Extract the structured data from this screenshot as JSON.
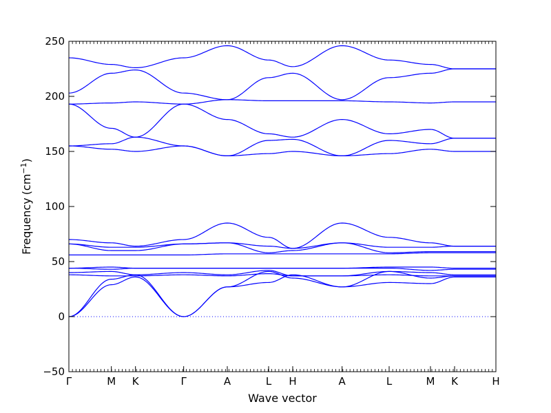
{
  "chart_data": {
    "type": "line",
    "title": "",
    "xlabel": "Wave vector",
    "ylabel": "Frequency",
    "ylabel_unit_base": "(cm",
    "ylabel_unit_exp": "−1",
    "ylabel_unit_close": ")",
    "ylim": [
      -50,
      250
    ],
    "yticks": [
      -50,
      0,
      50,
      100,
      150,
      200,
      250
    ],
    "xlim": [
      0,
      3.72
    ],
    "xtick_positions": [
      0,
      0.37,
      0.58,
      1.0,
      1.38,
      1.74,
      1.95,
      2.38,
      2.79,
      3.15,
      3.36,
      3.72
    ],
    "xtick_labels": [
      "Γ",
      "M",
      "K",
      "Γ",
      "A",
      "L",
      "H",
      "A",
      "L",
      "M",
      "K",
      "H"
    ],
    "grid": false,
    "zero_line": {
      "y": 0,
      "style": "dotted"
    },
    "line_color": "#0000ff",
    "series": [
      {
        "values": [
          [
            0,
            235
          ],
          [
            0.37,
            229
          ],
          [
            0.58,
            226
          ],
          [
            1.0,
            235
          ],
          [
            1.38,
            246
          ],
          [
            1.74,
            233
          ],
          [
            1.95,
            227
          ],
          [
            2.38,
            246
          ],
          [
            2.79,
            233
          ],
          [
            3.15,
            229
          ],
          [
            3.36,
            225
          ],
          [
            3.72,
            225
          ]
        ]
      },
      {
        "values": [
          [
            0,
            203
          ],
          [
            0.37,
            221
          ],
          [
            0.58,
            224
          ],
          [
            1.0,
            203
          ],
          [
            1.38,
            197
          ],
          [
            1.74,
            217
          ],
          [
            1.95,
            221
          ],
          [
            2.38,
            197
          ],
          [
            2.79,
            217
          ],
          [
            3.15,
            221
          ],
          [
            3.36,
            225
          ],
          [
            3.72,
            225
          ]
        ]
      },
      {
        "values": [
          [
            0,
            193
          ],
          [
            0.37,
            194
          ],
          [
            0.58,
            195
          ],
          [
            1.0,
            193
          ],
          [
            1.38,
            197
          ],
          [
            1.74,
            196
          ],
          [
            1.95,
            196
          ],
          [
            2.38,
            196
          ],
          [
            2.79,
            195
          ],
          [
            3.15,
            194
          ],
          [
            3.36,
            195
          ],
          [
            3.72,
            195
          ]
        ]
      },
      {
        "values": [
          [
            0,
            193
          ],
          [
            0.37,
            171
          ],
          [
            0.58,
            163
          ],
          [
            1.0,
            193
          ],
          [
            1.38,
            179
          ],
          [
            1.74,
            166
          ],
          [
            1.95,
            163
          ],
          [
            2.38,
            179
          ],
          [
            2.79,
            166
          ],
          [
            3.15,
            170
          ],
          [
            3.36,
            162
          ],
          [
            3.72,
            162
          ]
        ]
      },
      {
        "values": [
          [
            0,
            155
          ],
          [
            0.37,
            157
          ],
          [
            0.58,
            163
          ],
          [
            1.0,
            155
          ],
          [
            1.38,
            146
          ],
          [
            1.74,
            160
          ],
          [
            1.95,
            161
          ],
          [
            2.38,
            146
          ],
          [
            2.79,
            160
          ],
          [
            3.15,
            157
          ],
          [
            3.36,
            162
          ],
          [
            3.72,
            162
          ]
        ]
      },
      {
        "values": [
          [
            0,
            155
          ],
          [
            0.37,
            152
          ],
          [
            0.58,
            150
          ],
          [
            1.0,
            155
          ],
          [
            1.38,
            146
          ],
          [
            1.74,
            148
          ],
          [
            1.95,
            150
          ],
          [
            2.38,
            146
          ],
          [
            2.79,
            148
          ],
          [
            3.15,
            152
          ],
          [
            3.36,
            150
          ],
          [
            3.72,
            150
          ]
        ]
      },
      {
        "values": [
          [
            0,
            70
          ],
          [
            0.37,
            67
          ],
          [
            0.58,
            64
          ],
          [
            1.0,
            70
          ],
          [
            1.38,
            85
          ],
          [
            1.74,
            72
          ],
          [
            1.95,
            62
          ],
          [
            2.38,
            85
          ],
          [
            2.79,
            72
          ],
          [
            3.15,
            67
          ],
          [
            3.36,
            64
          ],
          [
            3.72,
            64
          ]
        ]
      },
      {
        "values": [
          [
            0,
            66
          ],
          [
            0.37,
            63
          ],
          [
            0.58,
            63
          ],
          [
            1.0,
            66
          ],
          [
            1.38,
            67
          ],
          [
            1.74,
            64
          ],
          [
            1.95,
            62
          ],
          [
            2.38,
            67
          ],
          [
            2.79,
            63
          ],
          [
            3.15,
            63
          ],
          [
            3.36,
            64
          ],
          [
            3.72,
            64
          ]
        ]
      },
      {
        "values": [
          [
            0,
            66
          ],
          [
            0.37,
            60
          ],
          [
            0.58,
            60
          ],
          [
            1.0,
            66
          ],
          [
            1.38,
            67
          ],
          [
            1.74,
            58
          ],
          [
            1.95,
            60
          ],
          [
            2.38,
            67
          ],
          [
            2.79,
            58
          ],
          [
            3.15,
            59
          ],
          [
            3.36,
            59
          ],
          [
            3.72,
            59
          ]
        ]
      },
      {
        "values": [
          [
            0,
            56
          ],
          [
            0.37,
            56
          ],
          [
            0.58,
            56
          ],
          [
            1.0,
            56
          ],
          [
            1.38,
            57
          ],
          [
            1.74,
            57
          ],
          [
            1.95,
            57
          ],
          [
            2.38,
            57
          ],
          [
            2.79,
            57
          ],
          [
            3.15,
            58
          ],
          [
            3.36,
            58
          ],
          [
            3.72,
            58
          ]
        ]
      },
      {
        "values": [
          [
            0,
            44
          ],
          [
            0.37,
            45
          ],
          [
            0.58,
            44
          ],
          [
            1.0,
            44
          ],
          [
            1.38,
            44
          ],
          [
            1.74,
            44
          ],
          [
            1.95,
            44
          ],
          [
            2.38,
            44
          ],
          [
            2.79,
            45
          ],
          [
            3.15,
            45
          ],
          [
            3.36,
            44
          ],
          [
            3.72,
            44
          ]
        ]
      },
      {
        "values": [
          [
            0,
            44
          ],
          [
            0.37,
            43
          ],
          [
            0.58,
            44
          ],
          [
            1.0,
            44
          ],
          [
            1.38,
            44
          ],
          [
            1.74,
            44
          ],
          [
            1.95,
            44
          ],
          [
            2.38,
            44
          ],
          [
            2.79,
            44
          ],
          [
            3.15,
            42
          ],
          [
            3.36,
            43
          ],
          [
            3.72,
            43
          ]
        ]
      },
      {
        "values": [
          [
            0,
            40
          ],
          [
            0.37,
            41
          ],
          [
            0.58,
            38
          ],
          [
            1.0,
            40
          ],
          [
            1.38,
            38
          ],
          [
            1.74,
            42
          ],
          [
            1.95,
            37
          ],
          [
            2.38,
            37
          ],
          [
            2.79,
            41
          ],
          [
            3.15,
            40
          ],
          [
            3.36,
            38
          ],
          [
            3.72,
            38
          ]
        ]
      },
      {
        "values": [
          [
            0,
            38
          ],
          [
            0.37,
            37
          ],
          [
            0.58,
            37
          ],
          [
            1.0,
            38
          ],
          [
            1.38,
            37
          ],
          [
            1.74,
            39
          ],
          [
            1.95,
            37
          ],
          [
            2.38,
            37
          ],
          [
            2.79,
            38
          ],
          [
            3.15,
            37
          ],
          [
            3.36,
            37
          ],
          [
            3.72,
            37
          ]
        ]
      },
      {
        "values": [
          [
            0,
            0
          ],
          [
            0.37,
            34
          ],
          [
            0.58,
            38
          ],
          [
            1.0,
            0
          ],
          [
            1.38,
            27
          ],
          [
            1.74,
            31
          ],
          [
            1.95,
            38
          ],
          [
            2.38,
            27
          ],
          [
            2.79,
            31
          ],
          [
            3.15,
            30
          ],
          [
            3.36,
            36
          ],
          [
            3.72,
            36
          ]
        ]
      },
      {
        "values": [
          [
            0,
            0
          ],
          [
            0.37,
            29
          ],
          [
            0.58,
            36
          ],
          [
            1.0,
            0
          ],
          [
            1.38,
            27
          ],
          [
            1.74,
            41
          ],
          [
            1.95,
            35
          ],
          [
            2.38,
            27
          ],
          [
            2.79,
            41
          ],
          [
            3.15,
            35
          ],
          [
            3.36,
            37
          ],
          [
            3.72,
            37
          ]
        ]
      }
    ]
  }
}
